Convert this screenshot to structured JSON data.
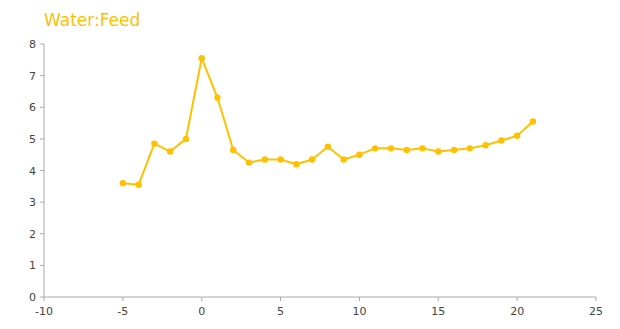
{
  "chart_data": {
    "type": "line",
    "title": "Water:Feed",
    "x": [
      -5,
      -4,
      -3,
      -2,
      -1,
      0,
      1,
      2,
      3,
      4,
      5,
      6,
      7,
      8,
      9,
      10,
      11,
      12,
      13,
      14,
      15,
      16,
      17,
      18,
      19,
      20,
      21
    ],
    "values": [
      3.6,
      3.55,
      4.85,
      4.6,
      5.0,
      7.55,
      6.3,
      4.65,
      4.25,
      4.35,
      4.35,
      4.2,
      4.35,
      4.75,
      4.35,
      4.5,
      4.7,
      4.7,
      4.65,
      4.7,
      4.6,
      4.65,
      4.7,
      4.8,
      4.95,
      5.1,
      5.55
    ],
    "color": "#FFC000",
    "marker": "circle",
    "xlim": [
      -10,
      25
    ],
    "ylim": [
      0,
      8
    ],
    "xticks": [
      -10,
      -5,
      0,
      5,
      10,
      15,
      20,
      25
    ],
    "yticks": [
      0,
      1,
      2,
      3,
      4,
      5,
      6,
      7,
      8
    ],
    "grid": false
  }
}
